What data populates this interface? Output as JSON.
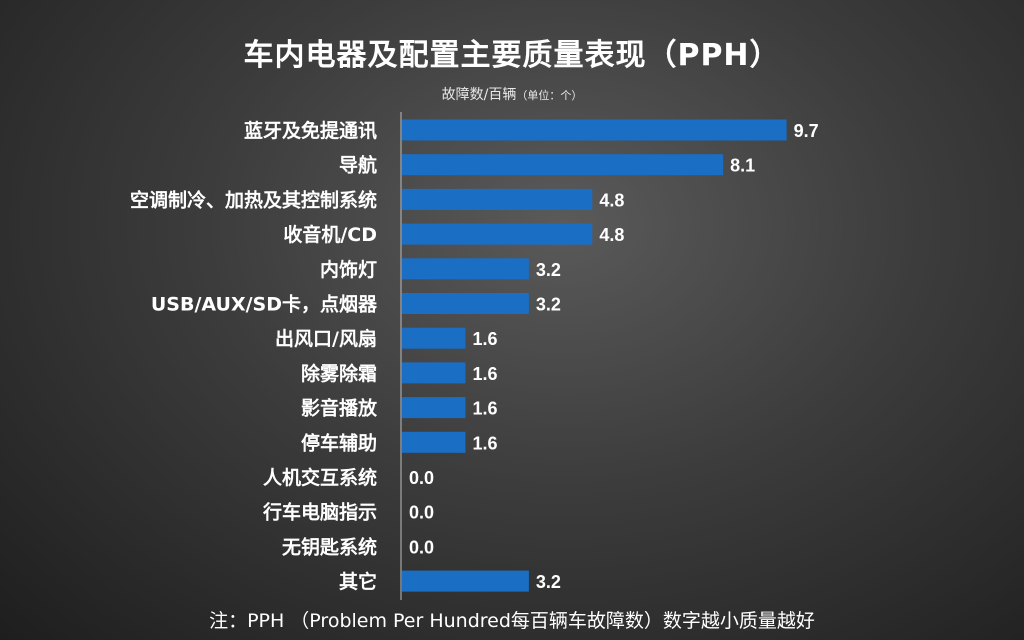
{
  "chart_data": {
    "type": "bar",
    "orientation": "horizontal",
    "title": "车内电器及配置主要质量表现（PPH）",
    "subtitle": "故障数/百辆",
    "unit_note": "（单位：个）",
    "categories": [
      "蓝牙及免提通讯",
      "导航",
      "空调制冷、加热及其控制系统",
      "收音机/CD",
      "内饰灯",
      "USB/AUX/SD卡，点烟器",
      "出风口/风扇",
      "除雾除霜",
      "影音播放",
      "停车辅助",
      "人机交互系统",
      "行车电脑指示",
      "无钥匙系统",
      "其它"
    ],
    "values": [
      9.7,
      8.1,
      4.8,
      4.8,
      3.2,
      3.2,
      1.6,
      1.6,
      1.6,
      1.6,
      0.0,
      0.0,
      0.0,
      3.2
    ],
    "value_labels": [
      "9.7",
      "8.1",
      "4.8",
      "4.8",
      "3.2",
      "3.2",
      "1.6",
      "1.6",
      "1.6",
      "1.6",
      "0.0",
      "0.0",
      "0.0",
      "3.2"
    ],
    "xlim": [
      0,
      10
    ],
    "grid": false,
    "legend": "none",
    "bar_color": "#1a6fc4",
    "footnote": "注：PPH （Problem Per Hundred每百辆车故障数）数字越小质量越好"
  }
}
